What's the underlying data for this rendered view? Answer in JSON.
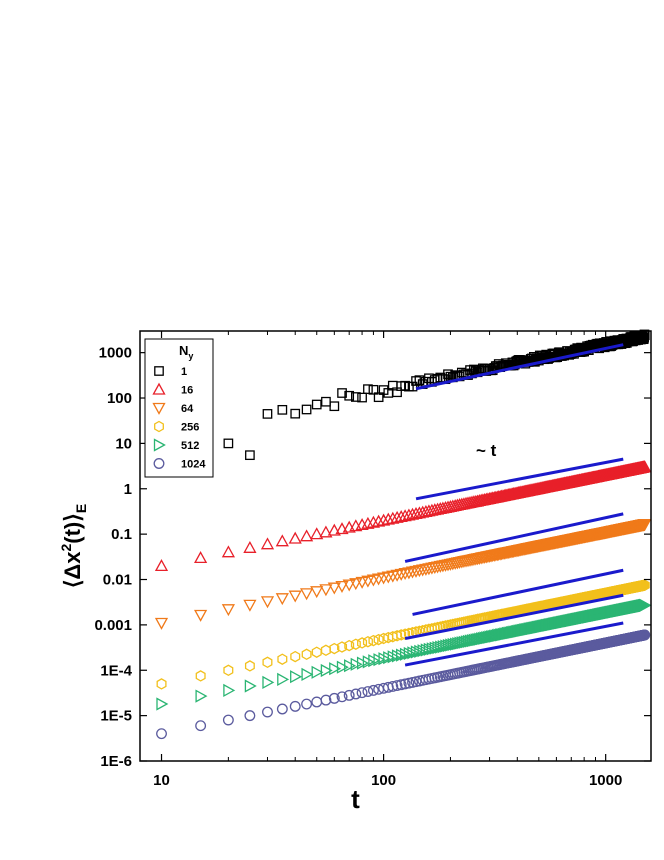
{
  "chart_data": {
    "type": "scatter",
    "x_scale": "log",
    "y_scale": "log",
    "xlim": [
      8,
      1600
    ],
    "ylim": [
      1e-06,
      3000
    ],
    "xlabel": "t",
    "ylabel_main": "⟨Δx",
    "ylabel_sup": "2",
    "ylabel_rest": "(t)⟩",
    "ylabel_sub": "E",
    "x_ticks": [
      {
        "value": 10,
        "label": "10"
      },
      {
        "value": 100,
        "label": "100"
      },
      {
        "value": 1000,
        "label": "1000"
      }
    ],
    "y_ticks": [
      {
        "value": 1e-06,
        "label": "1E-6"
      },
      {
        "value": 1e-05,
        "label": "1E-5"
      },
      {
        "value": 0.0001,
        "label": "1E-4"
      },
      {
        "value": 0.001,
        "label": "0.001"
      },
      {
        "value": 0.01,
        "label": "0.01"
      },
      {
        "value": 0.1,
        "label": "0.1"
      },
      {
        "value": 1,
        "label": "1"
      },
      {
        "value": 10,
        "label": "10"
      },
      {
        "value": 100,
        "label": "100"
      },
      {
        "value": 1000,
        "label": "1000"
      }
    ],
    "legend_title": "N",
    "legend_title_sub": "y",
    "legend_position": "top-left",
    "annotation": "~ t",
    "fit_color": "#1a1acc",
    "series": [
      {
        "name": "1",
        "marker": "square",
        "color": "#000000",
        "y_at_10": 12,
        "noisy": true,
        "fit": [
          [
            140,
            160
          ],
          [
            1200,
            1500
          ]
        ]
      },
      {
        "name": "16",
        "marker": "triangle-up",
        "color": "#e8202a",
        "y_at_10": 0.02,
        "fit": [
          [
            140,
            0.6
          ],
          [
            1200,
            4.5
          ]
        ]
      },
      {
        "name": "64",
        "marker": "triangle-down",
        "color": "#f07a1a",
        "y_at_10": 0.0011,
        "fit": [
          [
            125,
            0.025
          ],
          [
            1200,
            0.28
          ]
        ]
      },
      {
        "name": "256",
        "marker": "hexagon",
        "color": "#f2c01c",
        "y_at_10": 5e-05,
        "fit": [
          [
            135,
            0.0017
          ],
          [
            1200,
            0.016
          ]
        ]
      },
      {
        "name": "512",
        "marker": "triangle-right",
        "color": "#2bb573",
        "y_at_10": 1.8e-05,
        "fit": [
          [
            125,
            0.0005
          ],
          [
            1200,
            0.0045
          ]
        ]
      },
      {
        "name": "1024",
        "marker": "circle",
        "color": "#5b5b9e",
        "y_at_10": 4e-06,
        "fit": [
          [
            125,
            0.00013
          ],
          [
            1200,
            0.0011
          ]
        ]
      }
    ]
  }
}
